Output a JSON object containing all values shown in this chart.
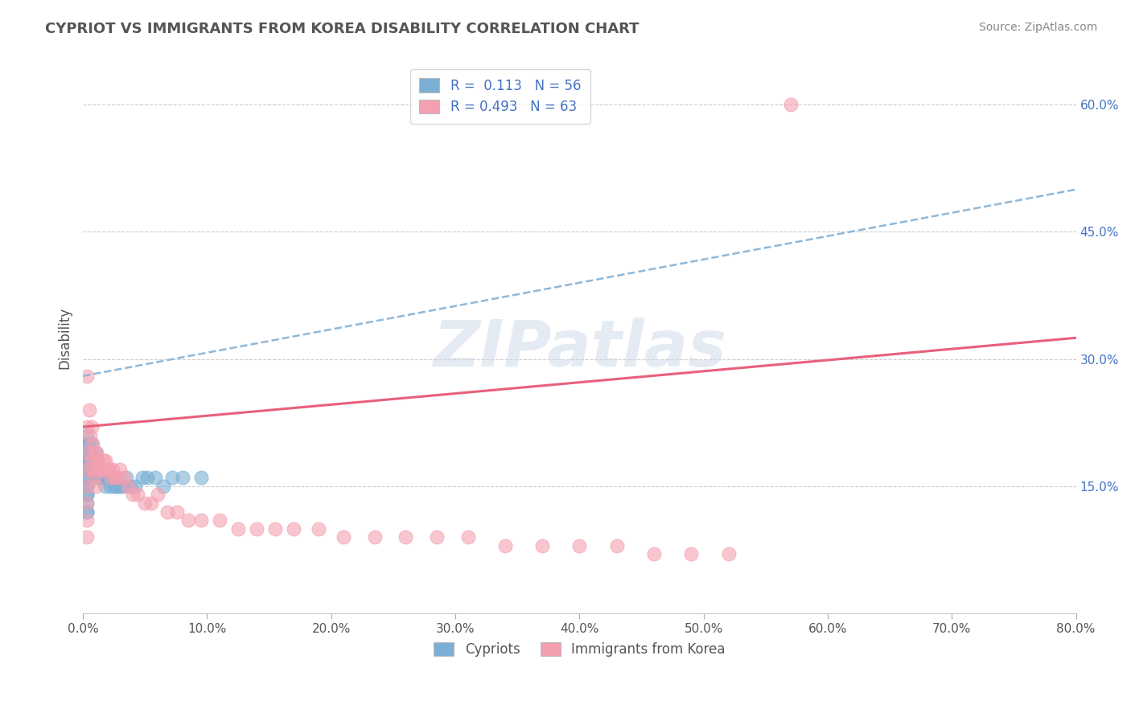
{
  "title": "CYPRIOT VS IMMIGRANTS FROM KOREA DISABILITY CORRELATION CHART",
  "source": "Source: ZipAtlas.com",
  "ylabel": "Disability",
  "xlim": [
    0.0,
    0.8
  ],
  "ylim": [
    0.0,
    0.65
  ],
  "xtick_positions": [
    0.0,
    0.1,
    0.2,
    0.3,
    0.4,
    0.5,
    0.6,
    0.7,
    0.8
  ],
  "xtick_labels": [
    "0.0%",
    "10.0%",
    "20.0%",
    "30.0%",
    "40.0%",
    "50.0%",
    "60.0%",
    "70.0%",
    "80.0%"
  ],
  "ytick_labels_right": [
    "60.0%",
    "45.0%",
    "30.0%",
    "15.0%"
  ],
  "ytick_vals_right": [
    0.6,
    0.45,
    0.3,
    0.15
  ],
  "cypriot_color": "#7bafd4",
  "korea_color": "#f4a0b0",
  "cypriot_line_color": "#90b8d8",
  "korea_line_color": "#e8607a",
  "R_cypriot": 0.113,
  "N_cypriot": 56,
  "R_korea": 0.493,
  "N_korea": 63,
  "legend_label_cypriot": "Cypriots",
  "legend_label_korea": "Immigrants from Korea",
  "watermark": "ZIPatlas",
  "background_color": "#ffffff",
  "cypriot_line_x0": 0.0,
  "cypriot_line_x1": 0.8,
  "cypriot_line_y0": 0.28,
  "cypriot_line_y1": 0.5,
  "korea_line_x0": 0.0,
  "korea_line_x1": 0.8,
  "korea_line_y0": 0.22,
  "korea_line_y1": 0.325,
  "cypriot_x": [
    0.003,
    0.003,
    0.003,
    0.003,
    0.003,
    0.003,
    0.003,
    0.003,
    0.003,
    0.003,
    0.003,
    0.003,
    0.003,
    0.003,
    0.003,
    0.003,
    0.003,
    0.005,
    0.006,
    0.006,
    0.007,
    0.007,
    0.008,
    0.008,
    0.009,
    0.009,
    0.01,
    0.01,
    0.011,
    0.012,
    0.012,
    0.013,
    0.014,
    0.015,
    0.016,
    0.017,
    0.018,
    0.019,
    0.02,
    0.021,
    0.022,
    0.024,
    0.025,
    0.027,
    0.03,
    0.032,
    0.035,
    0.038,
    0.042,
    0.048,
    0.052,
    0.058,
    0.065,
    0.072,
    0.08,
    0.095
  ],
  "cypriot_y": [
    0.21,
    0.2,
    0.19,
    0.19,
    0.18,
    0.18,
    0.17,
    0.17,
    0.16,
    0.16,
    0.15,
    0.15,
    0.14,
    0.14,
    0.13,
    0.12,
    0.12,
    0.2,
    0.19,
    0.18,
    0.2,
    0.19,
    0.18,
    0.17,
    0.17,
    0.16,
    0.19,
    0.18,
    0.17,
    0.17,
    0.16,
    0.16,
    0.17,
    0.16,
    0.16,
    0.16,
    0.15,
    0.16,
    0.16,
    0.16,
    0.15,
    0.16,
    0.15,
    0.15,
    0.15,
    0.15,
    0.16,
    0.15,
    0.15,
    0.16,
    0.16,
    0.16,
    0.15,
    0.16,
    0.16,
    0.16
  ],
  "korea_x": [
    0.003,
    0.003,
    0.003,
    0.003,
    0.003,
    0.003,
    0.003,
    0.003,
    0.005,
    0.006,
    0.007,
    0.007,
    0.008,
    0.008,
    0.009,
    0.009,
    0.01,
    0.01,
    0.011,
    0.012,
    0.013,
    0.014,
    0.015,
    0.016,
    0.017,
    0.018,
    0.02,
    0.021,
    0.022,
    0.024,
    0.026,
    0.028,
    0.03,
    0.033,
    0.036,
    0.04,
    0.044,
    0.05,
    0.055,
    0.06,
    0.068,
    0.076,
    0.085,
    0.095,
    0.11,
    0.125,
    0.14,
    0.155,
    0.17,
    0.19,
    0.21,
    0.235,
    0.26,
    0.285,
    0.31,
    0.34,
    0.37,
    0.4,
    0.43,
    0.46,
    0.49,
    0.52,
    0.57
  ],
  "korea_y": [
    0.28,
    0.22,
    0.19,
    0.17,
    0.15,
    0.13,
    0.11,
    0.09,
    0.24,
    0.21,
    0.22,
    0.18,
    0.2,
    0.17,
    0.19,
    0.16,
    0.18,
    0.15,
    0.19,
    0.18,
    0.17,
    0.17,
    0.17,
    0.17,
    0.18,
    0.18,
    0.17,
    0.17,
    0.16,
    0.17,
    0.16,
    0.16,
    0.17,
    0.16,
    0.15,
    0.14,
    0.14,
    0.13,
    0.13,
    0.14,
    0.12,
    0.12,
    0.11,
    0.11,
    0.11,
    0.1,
    0.1,
    0.1,
    0.1,
    0.1,
    0.09,
    0.09,
    0.09,
    0.09,
    0.09,
    0.08,
    0.08,
    0.08,
    0.08,
    0.07,
    0.07,
    0.07,
    0.6
  ]
}
